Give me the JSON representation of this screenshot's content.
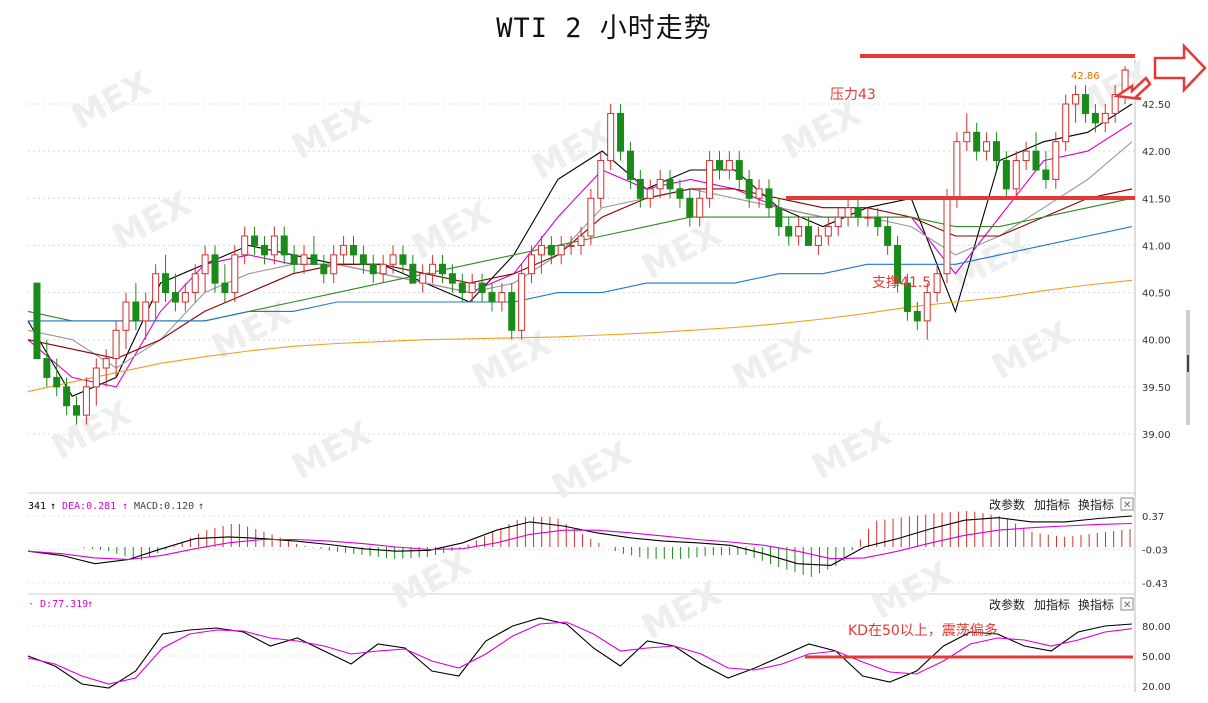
{
  "title": "WTI 2 小时走势",
  "colors": {
    "up": "#d0302f",
    "down": "#1a8a1a",
    "annotation": "#e53935",
    "ma5": "#000000",
    "ma10": "#d800d8",
    "ma20": "#999999",
    "ma30": "#8b0000",
    "ma60": "#2e8b22",
    "ma120": "#1f77d0",
    "ma250": "#f0a020",
    "dif": "#000000",
    "dea": "#d800d8",
    "k": "#000000",
    "d": "#d800d8"
  },
  "annotations": {
    "resistance": "压力43",
    "support": "支撑41.5",
    "kd_note": "KD在50以上，震荡偏多",
    "last_price": "42.86"
  },
  "macd_panel": {
    "label_a": "341",
    "arrow": "↑",
    "label_dea": "DEA:0.281",
    "label_macd": "MACD:0.120"
  },
  "kd_panel": {
    "label_d": "· D:77.319",
    "arrow": "↑"
  },
  "toolbar": {
    "change_params": "改参数",
    "add_indicator": "加指标",
    "switch_indicator": "换指标",
    "close": "✕"
  },
  "chart_data": [
    {
      "type": "candlestick",
      "name": "price",
      "y_ticks": [
        "42.50",
        "42.00",
        "41.50",
        "41.00",
        "40.50",
        "40.00",
        "39.50",
        "39.00"
      ],
      "ylim": [
        38.7,
        42.85
      ],
      "resistance": 43,
      "support": 41.5,
      "ohlc": [
        [
          40.6,
          40.6,
          39.8,
          39.8
        ],
        [
          39.8,
          40.0,
          39.5,
          39.6
        ],
        [
          39.6,
          39.8,
          39.4,
          39.5
        ],
        [
          39.5,
          39.6,
          39.2,
          39.3
        ],
        [
          39.3,
          39.4,
          39.1,
          39.2
        ],
        [
          39.2,
          39.6,
          39.1,
          39.5
        ],
        [
          39.5,
          39.8,
          39.3,
          39.7
        ],
        [
          39.7,
          39.9,
          39.5,
          39.8
        ],
        [
          39.8,
          40.2,
          39.6,
          40.1
        ],
        [
          40.1,
          40.5,
          39.9,
          40.4
        ],
        [
          40.4,
          40.6,
          40.1,
          40.2
        ],
        [
          40.2,
          40.5,
          40.0,
          40.4
        ],
        [
          40.4,
          40.8,
          40.2,
          40.7
        ],
        [
          40.7,
          40.9,
          40.4,
          40.5
        ],
        [
          40.5,
          40.7,
          40.3,
          40.4
        ],
        [
          40.4,
          40.6,
          40.3,
          40.5
        ],
        [
          40.5,
          40.8,
          40.4,
          40.7
        ],
        [
          40.7,
          41.0,
          40.5,
          40.9
        ],
        [
          40.9,
          41.0,
          40.5,
          40.6
        ],
        [
          40.6,
          40.8,
          40.4,
          40.5
        ],
        [
          40.5,
          41.0,
          40.4,
          40.9
        ],
        [
          40.9,
          41.2,
          40.8,
          41.1
        ],
        [
          41.1,
          41.2,
          40.9,
          41.0
        ],
        [
          41.0,
          41.1,
          40.8,
          40.9
        ],
        [
          40.9,
          41.2,
          40.8,
          41.1
        ],
        [
          41.1,
          41.2,
          40.8,
          40.9
        ],
        [
          40.9,
          41.0,
          40.7,
          40.8
        ],
        [
          40.8,
          41.0,
          40.7,
          40.9
        ],
        [
          40.9,
          41.1,
          40.8,
          40.8
        ],
        [
          40.8,
          40.9,
          40.6,
          40.7
        ],
        [
          40.7,
          41.0,
          40.6,
          40.9
        ],
        [
          40.9,
          41.1,
          40.8,
          41.0
        ],
        [
          41.0,
          41.1,
          40.8,
          40.9
        ],
        [
          40.9,
          41.0,
          40.7,
          40.8
        ],
        [
          40.8,
          40.9,
          40.6,
          40.7
        ],
        [
          40.7,
          40.9,
          40.6,
          40.8
        ],
        [
          40.8,
          41.0,
          40.7,
          40.9
        ],
        [
          40.9,
          41.0,
          40.7,
          40.8
        ],
        [
          40.8,
          40.9,
          40.6,
          40.6
        ],
        [
          40.6,
          40.8,
          40.5,
          40.7
        ],
        [
          40.7,
          40.9,
          40.6,
          40.8
        ],
        [
          40.8,
          40.9,
          40.6,
          40.7
        ],
        [
          40.7,
          40.8,
          40.5,
          40.6
        ],
        [
          40.6,
          40.7,
          40.4,
          40.5
        ],
        [
          40.5,
          40.7,
          40.4,
          40.6
        ],
        [
          40.6,
          40.7,
          40.4,
          40.5
        ],
        [
          40.5,
          40.6,
          40.3,
          40.4
        ],
        [
          40.4,
          40.6,
          40.3,
          40.5
        ],
        [
          40.5,
          40.6,
          40.0,
          40.1
        ],
        [
          40.1,
          40.8,
          40.0,
          40.7
        ],
        [
          40.7,
          41.0,
          40.6,
          40.9
        ],
        [
          40.9,
          41.1,
          40.7,
          41.0
        ],
        [
          41.0,
          41.1,
          40.8,
          40.9
        ],
        [
          40.9,
          41.1,
          40.8,
          41.0
        ],
        [
          41.0,
          41.1,
          40.9,
          41.0
        ],
        [
          41.0,
          41.2,
          40.9,
          41.1
        ],
        [
          41.1,
          41.6,
          41.0,
          41.5
        ],
        [
          41.5,
          42.0,
          41.4,
          41.9
        ],
        [
          41.9,
          42.5,
          41.8,
          42.4
        ],
        [
          42.4,
          42.5,
          41.9,
          42.0
        ],
        [
          42.0,
          42.1,
          41.6,
          41.7
        ],
        [
          41.7,
          41.8,
          41.4,
          41.5
        ],
        [
          41.5,
          41.7,
          41.4,
          41.6
        ],
        [
          41.6,
          41.8,
          41.5,
          41.7
        ],
        [
          41.7,
          41.8,
          41.5,
          41.6
        ],
        [
          41.6,
          41.7,
          41.4,
          41.5
        ],
        [
          41.5,
          41.6,
          41.2,
          41.3
        ],
        [
          41.3,
          41.6,
          41.2,
          41.5
        ],
        [
          41.5,
          42.0,
          41.4,
          41.9
        ],
        [
          41.9,
          42.0,
          41.7,
          41.8
        ],
        [
          41.8,
          42.0,
          41.7,
          41.9
        ],
        [
          41.9,
          42.0,
          41.6,
          41.7
        ],
        [
          41.7,
          41.8,
          41.4,
          41.5
        ],
        [
          41.5,
          41.7,
          41.4,
          41.6
        ],
        [
          41.6,
          41.7,
          41.3,
          41.4
        ],
        [
          41.4,
          41.5,
          41.1,
          41.2
        ],
        [
          41.2,
          41.3,
          41.0,
          41.1
        ],
        [
          41.1,
          41.3,
          41.0,
          41.2
        ],
        [
          41.2,
          41.3,
          41.0,
          41.0
        ],
        [
          41.0,
          41.2,
          40.9,
          41.1
        ],
        [
          41.1,
          41.3,
          41.0,
          41.2
        ],
        [
          41.2,
          41.4,
          41.1,
          41.3
        ],
        [
          41.3,
          41.5,
          41.2,
          41.4
        ],
        [
          41.4,
          41.5,
          41.2,
          41.3
        ],
        [
          41.3,
          41.4,
          41.2,
          41.3
        ],
        [
          41.3,
          41.4,
          41.1,
          41.2
        ],
        [
          41.2,
          41.3,
          40.9,
          41.0
        ],
        [
          41.0,
          41.1,
          40.5,
          40.6
        ],
        [
          40.6,
          40.7,
          40.2,
          40.3
        ],
        [
          40.3,
          40.4,
          40.1,
          40.2
        ],
        [
          40.2,
          40.6,
          40.0,
          40.5
        ],
        [
          40.5,
          40.8,
          40.4,
          40.7
        ],
        [
          40.7,
          41.6,
          40.6,
          41.5
        ],
        [
          41.5,
          42.2,
          41.4,
          42.1
        ],
        [
          42.1,
          42.4,
          42.0,
          42.2
        ],
        [
          42.2,
          42.3,
          41.9,
          42.0
        ],
        [
          42.0,
          42.2,
          41.9,
          42.1
        ],
        [
          42.1,
          42.2,
          41.8,
          41.9
        ],
        [
          41.9,
          42.0,
          41.5,
          41.6
        ],
        [
          41.6,
          42.0,
          41.5,
          41.9
        ],
        [
          41.9,
          42.1,
          41.8,
          42.0
        ],
        [
          42.0,
          42.2,
          41.8,
          41.8
        ],
        [
          41.8,
          42.0,
          41.6,
          41.7
        ],
        [
          41.7,
          42.2,
          41.6,
          42.1
        ],
        [
          42.1,
          42.6,
          42.0,
          42.5
        ],
        [
          42.5,
          42.7,
          42.3,
          42.6
        ],
        [
          42.6,
          42.7,
          42.3,
          42.4
        ],
        [
          42.4,
          42.5,
          42.2,
          42.3
        ],
        [
          42.3,
          42.5,
          42.2,
          42.4
        ],
        [
          42.4,
          42.7,
          42.3,
          42.6
        ],
        [
          42.6,
          42.9,
          42.5,
          42.86
        ]
      ],
      "ma": [
        {
          "period": 5,
          "values": [
            40.2,
            39.4,
            39.6,
            40.6,
            40.8,
            41.0,
            40.9,
            40.8,
            40.8,
            40.6,
            40.4,
            40.9,
            41.7,
            42.0,
            41.6,
            41.8,
            41.8,
            41.4,
            41.2,
            41.4,
            41.5,
            40.3,
            41.9,
            42.1,
            42.2,
            42.5
          ]
        },
        {
          "period": 10,
          "values": [
            40.0,
            39.6,
            39.5,
            40.3,
            40.8,
            40.9,
            40.8,
            40.8,
            40.7,
            40.6,
            40.5,
            40.7,
            41.3,
            41.8,
            41.6,
            41.7,
            41.6,
            41.4,
            41.3,
            41.3,
            41.3,
            40.7,
            41.3,
            41.9,
            42.0,
            42.3
          ]
        },
        {
          "period": 20,
          "values": [
            40.1,
            40.0,
            39.7,
            40.0,
            40.5,
            40.7,
            40.8,
            40.8,
            40.7,
            40.6,
            40.5,
            40.6,
            40.9,
            41.4,
            41.5,
            41.6,
            41.5,
            41.4,
            41.3,
            41.3,
            41.2,
            40.9,
            41.1,
            41.4,
            41.7,
            42.1
          ]
        },
        {
          "period": 30,
          "values": [
            40.0,
            39.9,
            39.8,
            40.0,
            40.3,
            40.5,
            40.7,
            40.8,
            40.8,
            40.7,
            40.6,
            40.7,
            40.9,
            41.3,
            41.5,
            41.6,
            41.6,
            41.5,
            41.4,
            41.4,
            41.3,
            41.1,
            41.1,
            41.3,
            41.5,
            41.6
          ]
        },
        {
          "period": 60,
          "values": [
            40.3,
            40.2,
            40.2,
            40.2,
            40.2,
            40.3,
            40.4,
            40.5,
            40.6,
            40.7,
            40.8,
            40.9,
            41.0,
            41.1,
            41.2,
            41.3,
            41.3,
            41.3,
            41.3,
            41.3,
            41.3,
            41.2,
            41.2,
            41.3,
            41.4,
            41.5
          ]
        },
        {
          "period": 120,
          "values": [
            40.2,
            40.2,
            40.2,
            40.2,
            40.2,
            40.3,
            40.3,
            40.4,
            40.4,
            40.4,
            40.4,
            40.4,
            40.5,
            40.5,
            40.6,
            40.6,
            40.6,
            40.7,
            40.7,
            40.8,
            40.8,
            40.8,
            40.9,
            41.0,
            41.1,
            41.2
          ]
        },
        {
          "period": 250,
          "values": [
            39.45,
            39.55,
            39.65,
            39.75,
            39.82,
            39.88,
            39.93,
            39.96,
            39.98,
            40.0,
            40.01,
            40.02,
            40.03,
            40.05,
            40.07,
            40.1,
            40.13,
            40.17,
            40.22,
            40.28,
            40.35,
            40.4,
            40.45,
            40.52,
            40.58,
            40.63
          ]
        }
      ]
    },
    {
      "type": "macd",
      "y_ticks": [
        "0.37",
        "-0.03",
        "-0.43"
      ],
      "ylim": [
        -0.5,
        0.45
      ],
      "dif": [
        -0.05,
        -0.1,
        -0.2,
        -0.15,
        -0.02,
        0.1,
        0.12,
        0.1,
        0.07,
        0.03,
        -0.02,
        -0.05,
        -0.04,
        0.05,
        0.2,
        0.3,
        0.25,
        0.17,
        0.11,
        0.07,
        0.05,
        0.02,
        -0.08,
        -0.2,
        -0.22,
        0.0,
        0.1,
        0.22,
        0.32,
        0.35,
        0.3,
        0.3,
        0.34,
        0.37
      ],
      "dea": [
        -0.05,
        -0.08,
        -0.13,
        -0.15,
        -0.1,
        -0.02,
        0.05,
        0.09,
        0.09,
        0.07,
        0.04,
        0.0,
        -0.03,
        -0.02,
        0.05,
        0.15,
        0.2,
        0.2,
        0.17,
        0.13,
        0.09,
        0.06,
        0.02,
        -0.05,
        -0.14,
        -0.13,
        -0.05,
        0.05,
        0.14,
        0.2,
        0.23,
        0.25,
        0.27,
        0.281
      ]
    },
    {
      "type": "kd",
      "y_ticks": [
        "80.00",
        "50.00",
        "20.00"
      ],
      "ylim": [
        15,
        88
      ],
      "reference": 50,
      "k": [
        50,
        40,
        22,
        18,
        35,
        72,
        76,
        78,
        74,
        60,
        68,
        55,
        42,
        62,
        58,
        35,
        30,
        65,
        80,
        88,
        82,
        58,
        40,
        65,
        60,
        42,
        28,
        38,
        50,
        62,
        55,
        30,
        24,
        35,
        60,
        74,
        72,
        60,
        55,
        74,
        80,
        82
      ],
      "d": [
        48,
        42,
        30,
        22,
        28,
        58,
        72,
        76,
        75,
        68,
        65,
        60,
        52,
        55,
        57,
        45,
        38,
        52,
        70,
        82,
        84,
        72,
        55,
        58,
        60,
        52,
        38,
        36,
        42,
        52,
        55,
        44,
        34,
        32,
        45,
        62,
        68,
        66,
        60,
        66,
        74,
        77.319
      ]
    }
  ]
}
